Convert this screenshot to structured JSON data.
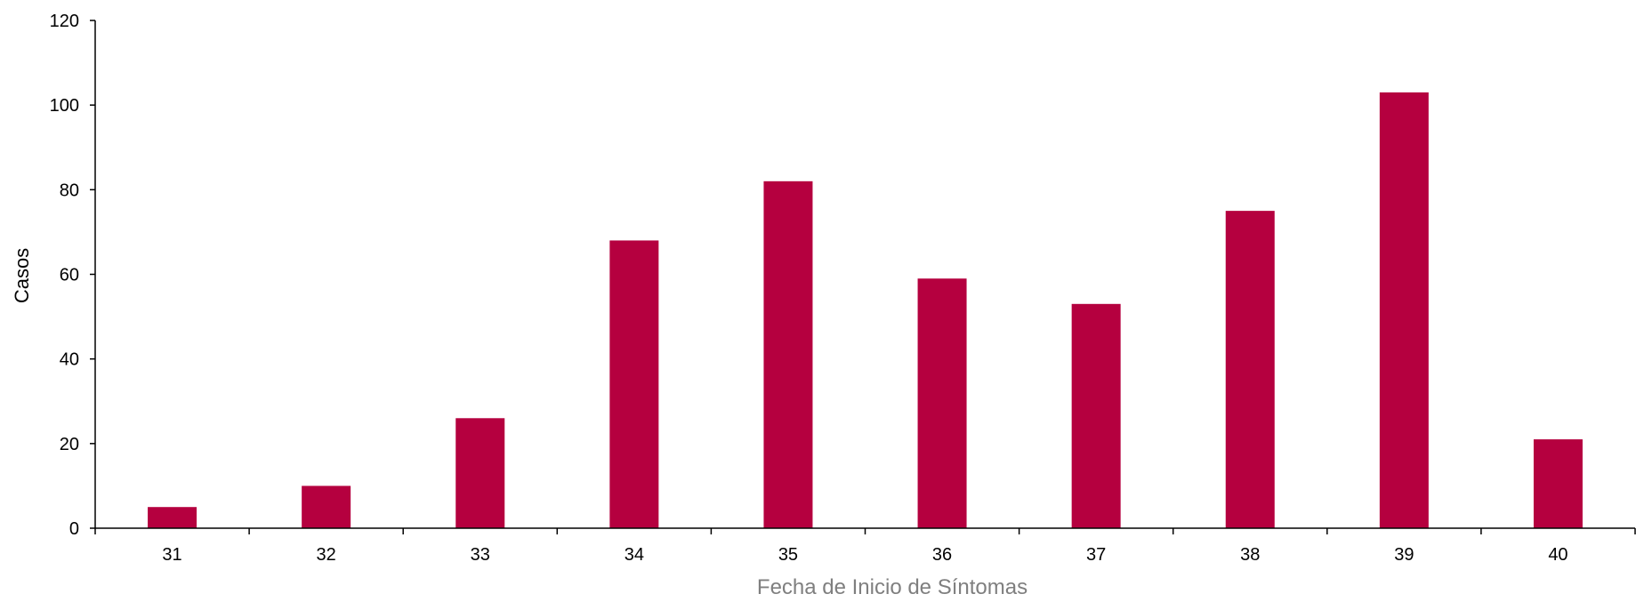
{
  "chart_data": {
    "type": "bar",
    "title": "",
    "xlabel": "Fecha de Inicio de Síntomas",
    "ylabel": "Casos",
    "categories": [
      "31",
      "32",
      "33",
      "34",
      "35",
      "36",
      "37",
      "38",
      "39",
      "40"
    ],
    "values": [
      5,
      10,
      26,
      68,
      82,
      59,
      53,
      75,
      103,
      21
    ],
    "ylim": [
      0,
      120
    ],
    "yticks": [
      0,
      20,
      40,
      60,
      80,
      100,
      120
    ],
    "grid": false,
    "legend": "none",
    "colors": {
      "bar": "#b5003f",
      "axis": "#000000",
      "xlabel": "#7f7f7f"
    }
  }
}
